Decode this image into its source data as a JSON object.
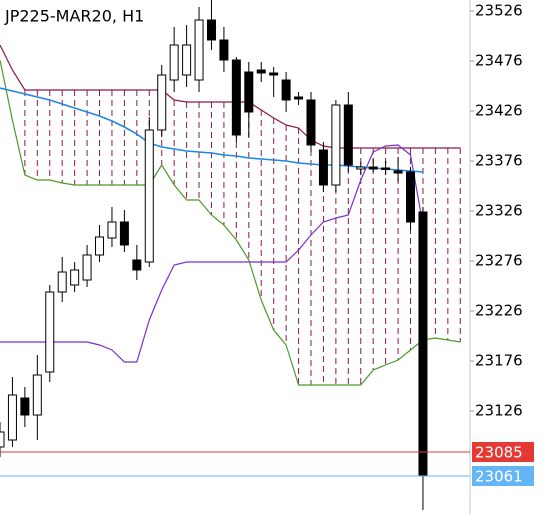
{
  "chart_data": {
    "type": "candlestick",
    "title": "JP225-MAR20, H1",
    "categories": [
      null,
      null,
      null,
      null,
      null,
      null,
      null,
      null,
      null,
      null,
      null,
      null,
      null,
      null,
      null,
      null,
      null,
      null,
      null,
      null,
      null,
      null,
      null,
      null,
      null,
      null,
      null,
      null,
      null,
      null,
      null,
      null,
      null,
      null,
      null,
      null,
      null,
      null
    ],
    "open": [
      23090,
      23097,
      23139,
      23122,
      23165,
      23245,
      23252,
      23257,
      23282,
      23299,
      23315,
      23277,
      23275,
      23407,
      23457,
      23462,
      23457,
      23517,
      23497,
      23477,
      23465,
      23467,
      23464,
      23457,
      23440,
      23437,
      23387,
      23352,
      23432,
      23368,
      23370,
      23369,
      23366,
      23365,
      23325,
      null,
      null,
      null
    ],
    "high": [
      23115,
      23160,
      23150,
      23182,
      23252,
      23280,
      23275,
      23292,
      23312,
      23330,
      23327,
      23292,
      23420,
      23472,
      23510,
      23512,
      23530,
      23537,
      23510,
      23480,
      23475,
      23475,
      23470,
      23465,
      23445,
      23445,
      23395,
      23437,
      23445,
      23375,
      23378,
      23376,
      23380,
      23370,
      23330,
      null,
      null,
      null
    ],
    "low": [
      23080,
      23090,
      23110,
      23097,
      23155,
      23235,
      23245,
      23250,
      23275,
      23290,
      23285,
      23257,
      23270,
      23400,
      23445,
      23450,
      23445,
      23487,
      23465,
      23395,
      23400,
      23455,
      23440,
      23425,
      23432,
      23385,
      23345,
      23345,
      23365,
      23362,
      23365,
      23362,
      23355,
      23307,
      23027,
      null,
      null,
      null
    ],
    "close": [
      23105,
      23142,
      23122,
      23162,
      23245,
      23265,
      23267,
      23282,
      23300,
      23315,
      23292,
      23267,
      23407,
      23462,
      23492,
      23492,
      23517,
      23497,
      23477,
      23402,
      23425,
      23464,
      23462,
      23437,
      23438,
      23392,
      23352,
      23432,
      23372,
      23370,
      23368,
      23368,
      23364,
      23315,
      23061,
      null,
      null,
      null
    ],
    "up_color": "#ffffff",
    "down_color": "#000000",
    "series": [
      {
        "color": "#8b1a4a",
        "values": [
          23492,
          23467,
          23447,
          23447,
          23447,
          23447,
          23447,
          23447,
          23447,
          23447,
          23447,
          23447,
          23447,
          23447,
          23437,
          23435,
          23435,
          23435,
          23435,
          23435,
          23435,
          23427,
          23419,
          23412,
          23409,
          23397,
          23391,
          23389,
          23389,
          23389,
          23389,
          23389,
          23389,
          23389,
          23389,
          23389,
          23389,
          23389
        ]
      },
      {
        "color": "#4c9a2a",
        "values": [
          23477,
          23417,
          23362,
          23357,
          23357,
          23354,
          23352,
          23352,
          23352,
          23352,
          23352,
          23352,
          23352,
          23372,
          23352,
          23337,
          23337,
          23322,
          23312,
          23297,
          23277,
          23237,
          23207,
          23192,
          23152,
          23152,
          23152,
          23152,
          23152,
          23152,
          23167,
          23172,
          23177,
          23187,
          23197,
          23199,
          23197,
          23195
        ]
      },
      {
        "color": "#7b2fd0",
        "values": [
          23195,
          23195,
          23195,
          23195,
          23195,
          23195,
          23195,
          23195,
          23192,
          23187,
          23175,
          23175,
          23217,
          23247,
          23272,
          23275,
          23275,
          23275,
          23275,
          23275,
          23275,
          23275,
          23275,
          23275,
          23287,
          23302,
          23315,
          23319,
          23322,
          23357,
          23385,
          23391,
          23392,
          23382,
          23312,
          null,
          null,
          null
        ]
      },
      {
        "color": "#1e88e5",
        "values": [
          23449,
          23446,
          23443,
          23440,
          23437,
          23433,
          23429,
          23425,
          23421,
          23416,
          23410,
          23403,
          23394,
          23390,
          23388,
          23386,
          23385,
          23384,
          23382,
          23381,
          23379,
          23378,
          23377,
          23376,
          23374,
          23373,
          23372,
          23372,
          23371,
          23370,
          23369,
          23368,
          23367,
          23366,
          23365,
          null,
          null,
          null
        ]
      }
    ],
    "cloud_color": "#8b1a4a",
    "ylim": [
      23023,
      23537
    ],
    "yticks": [
      23126,
      23176,
      23226,
      23276,
      23326,
      23376,
      23426,
      23476,
      23526
    ],
    "price_lines": [
      {
        "value": 23085,
        "color": "#e53935",
        "label_color": "#ffffff"
      },
      {
        "value": 23061,
        "color": "#64b5f6",
        "label_color": "#ffffff"
      }
    ]
  }
}
